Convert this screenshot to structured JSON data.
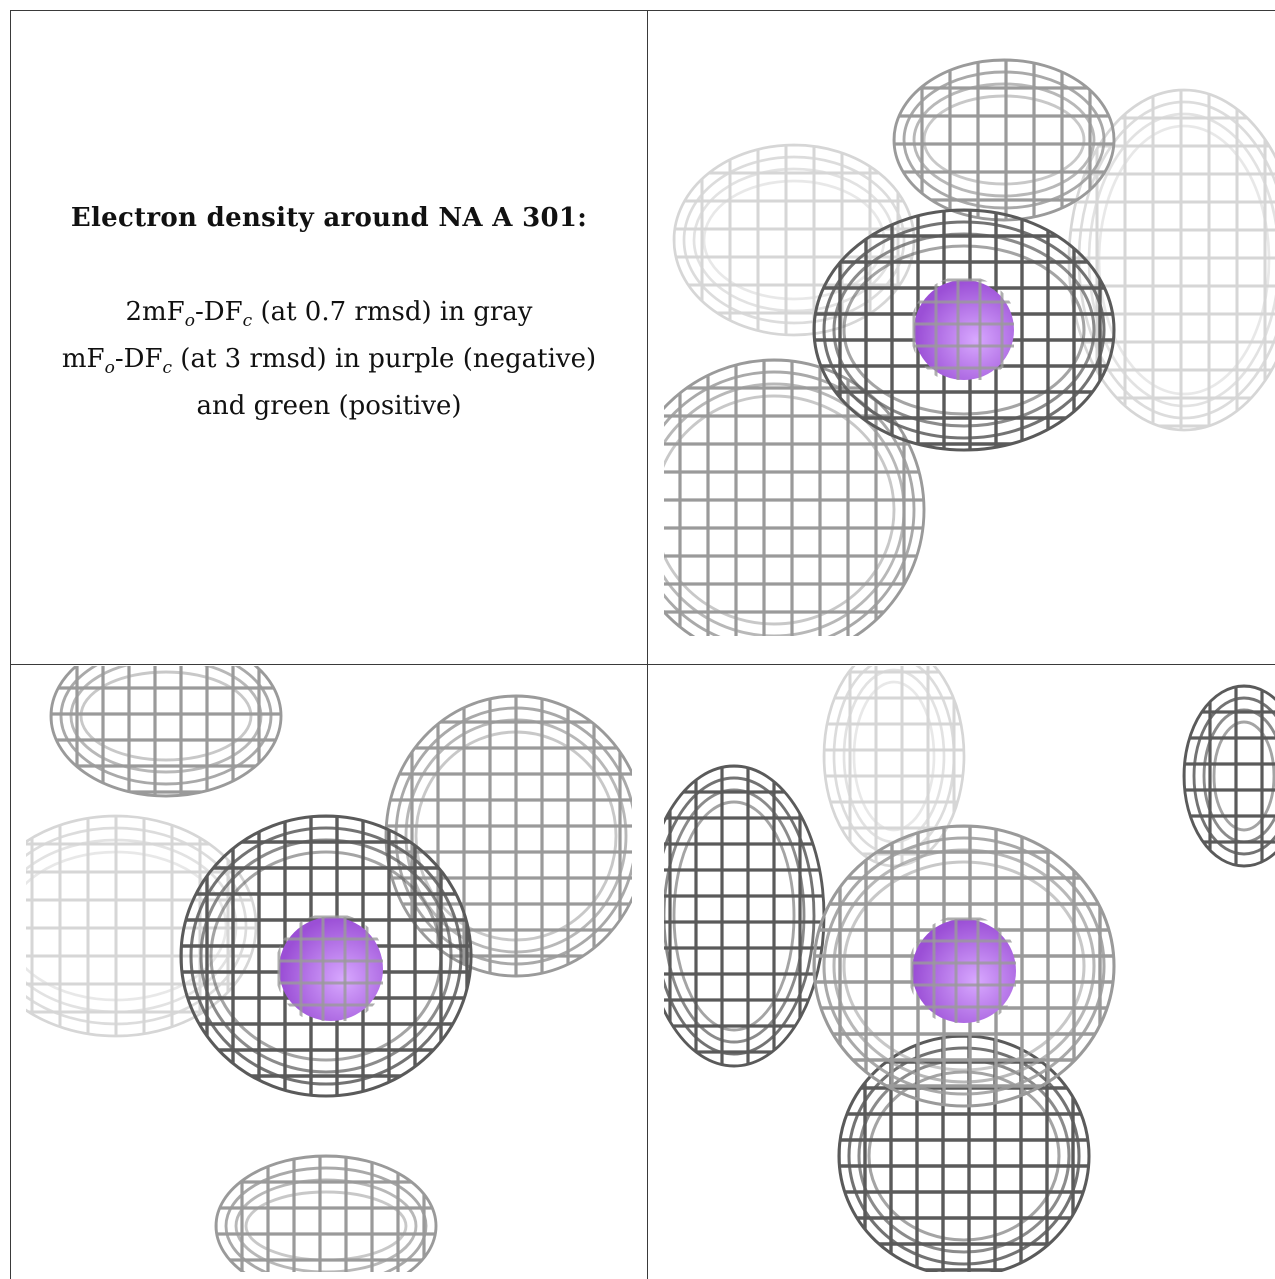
{
  "caption": {
    "title": "Electron density around NA A 301:",
    "line1": {
      "prefix": "2mF",
      "sub1": "o",
      "mid": "-DF",
      "sub2": "c",
      "suffix": " (at 0.7 rmsd) in gray"
    },
    "line2": {
      "prefix": "mF",
      "sub1": "o",
      "mid": "-DF",
      "sub2": "c",
      "suffix": " (at 3 rmsd) in purple (negative)"
    },
    "line3": "and green (positive)"
  },
  "colors": {
    "mesh_dark": "#5a5a5a",
    "mesh_mid": "#9a9a9a",
    "mesh_light": "#d6d6d6",
    "sodium_ion": "#9b4fd6",
    "sodium_highlight": "#d8a8ff"
  },
  "views": [
    {
      "label": "view-top-right"
    },
    {
      "label": "view-bottom-left"
    },
    {
      "label": "view-bottom-right"
    }
  ]
}
